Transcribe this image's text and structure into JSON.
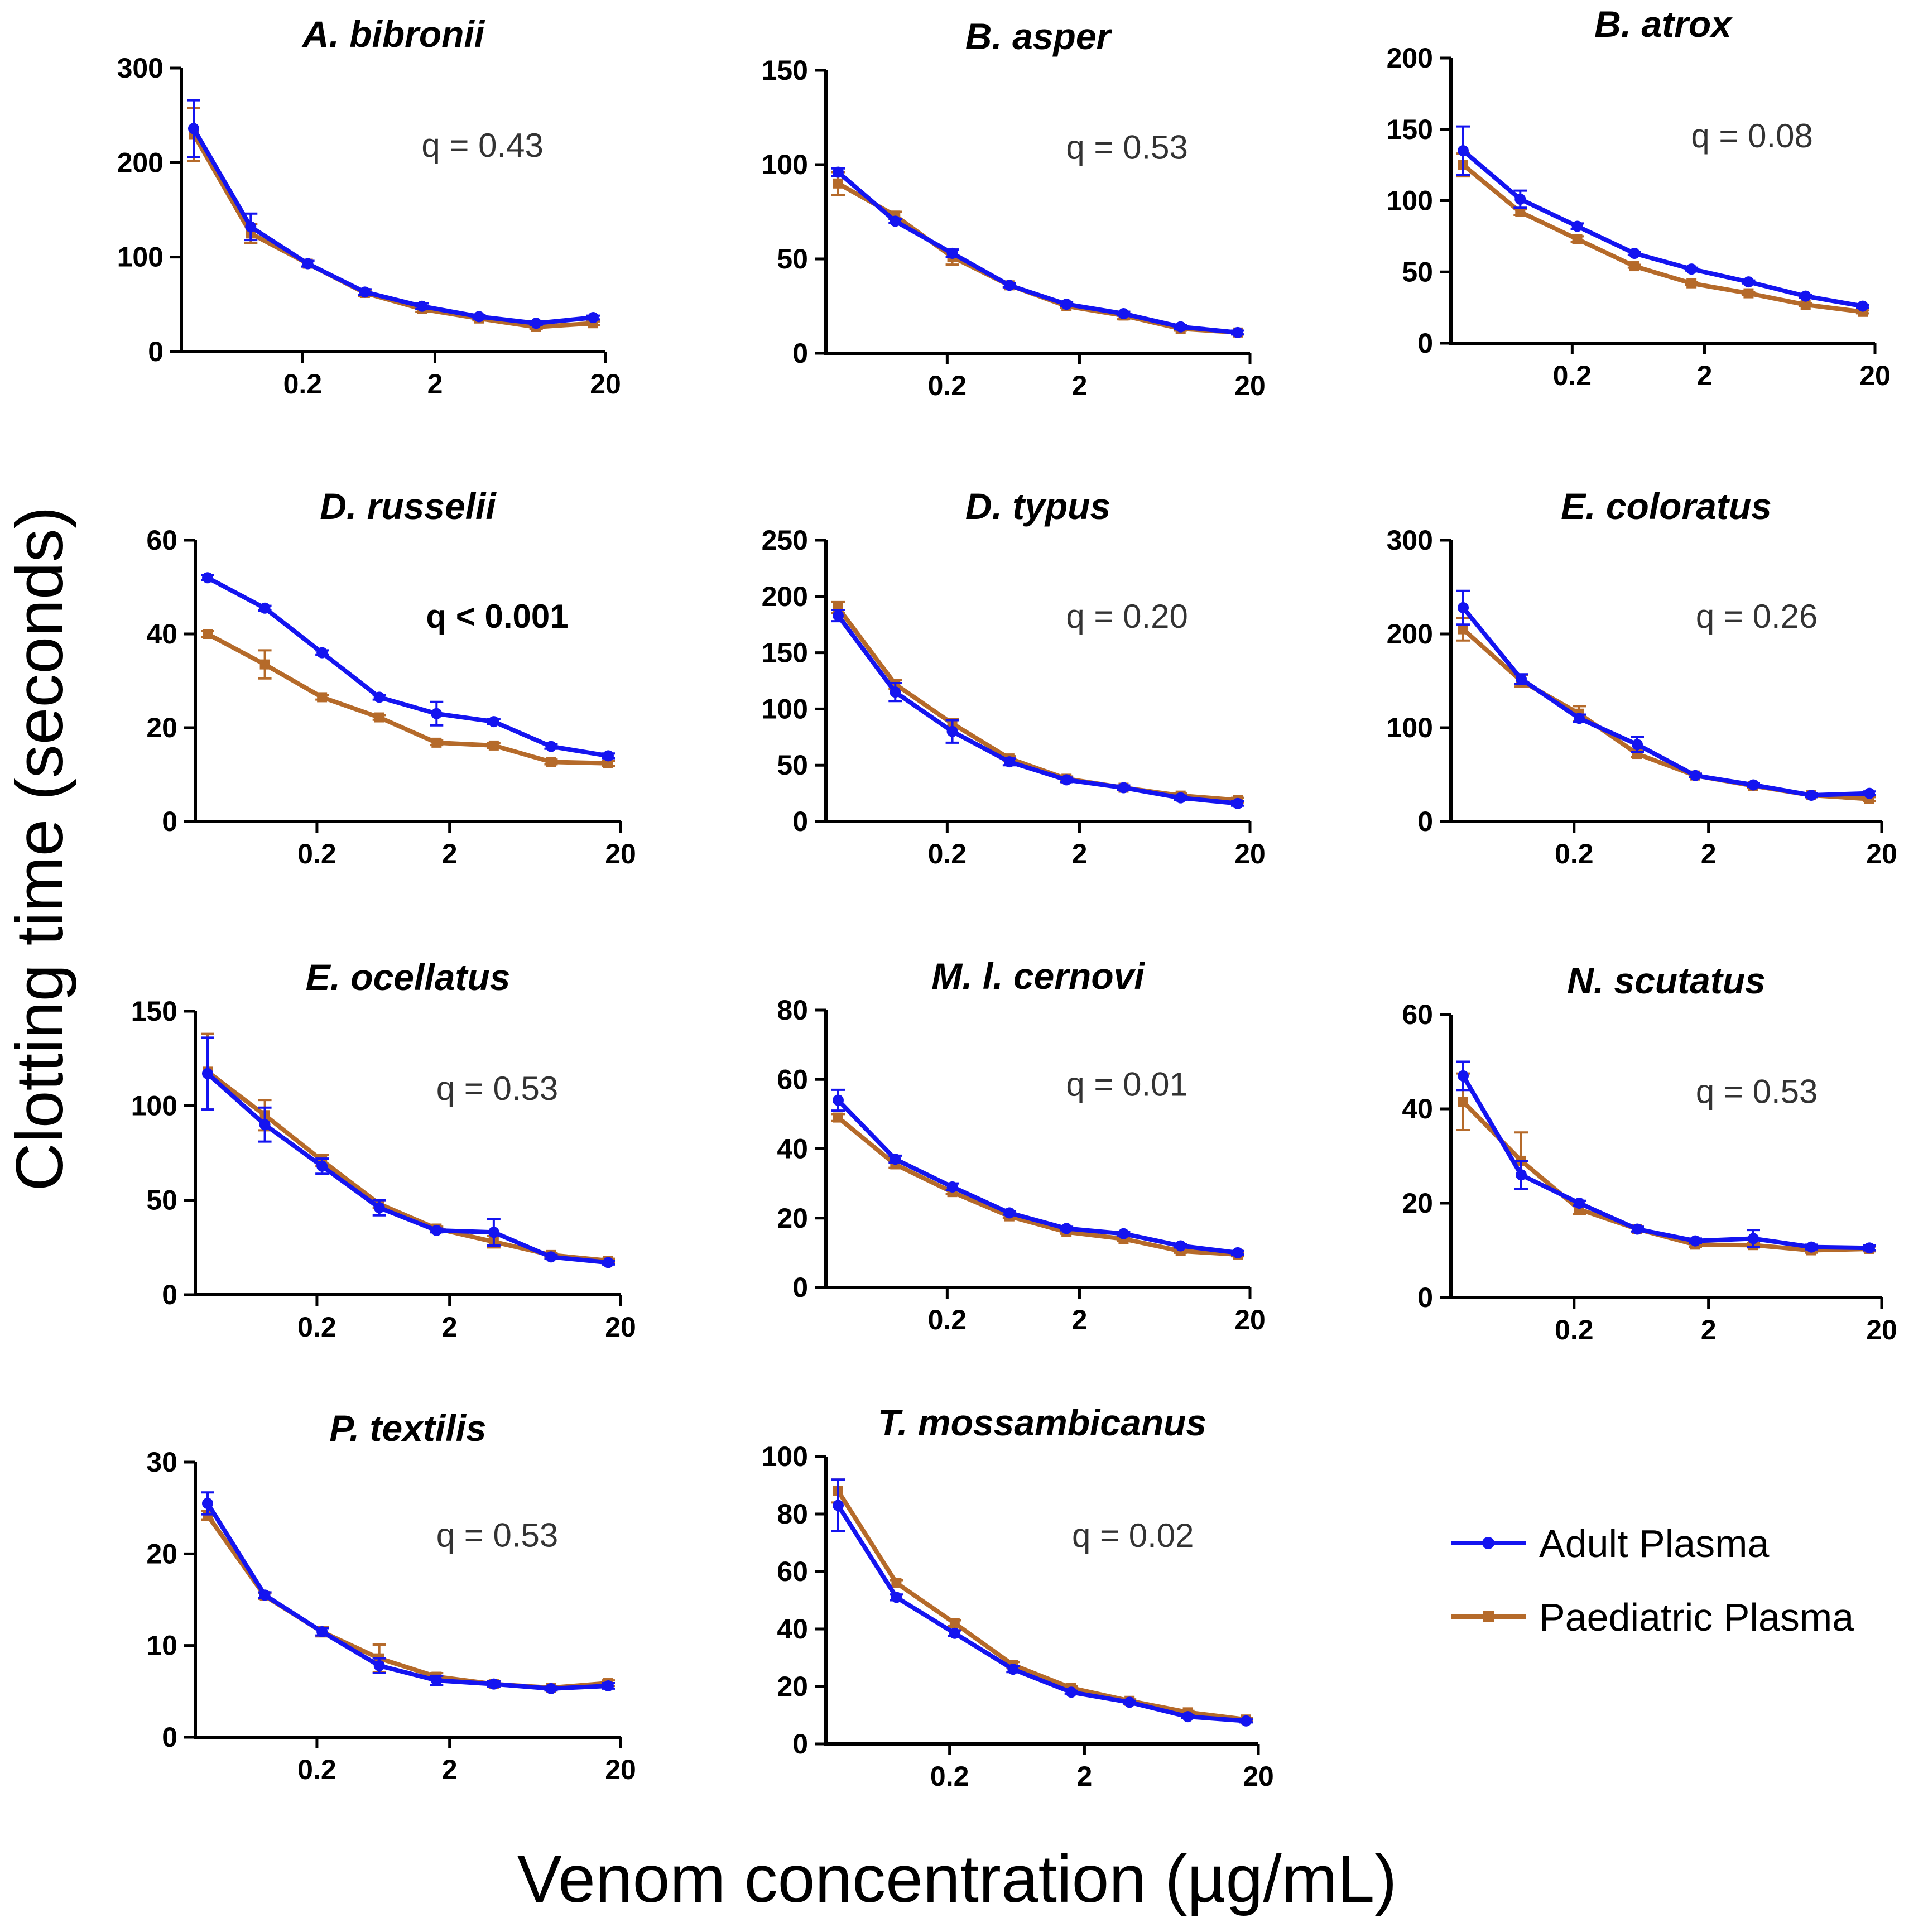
{
  "y_axis_label": "Clotting time (seconds)",
  "x_axis_label": "Venom concentration (µg/mL)",
  "legend": [
    {
      "label": "Adult Plasma",
      "color": "#1414f0",
      "marker": "circle"
    },
    {
      "label": "Paediatric Plasma",
      "color": "#b56a2a",
      "marker": "square"
    }
  ],
  "chart_data": [
    {
      "type": "line",
      "title": "A. bibronii",
      "q": "q = 0.43",
      "q_bold": false,
      "ylim": [
        0,
        300
      ],
      "yticks": [
        0,
        100,
        200,
        300
      ],
      "xticks": [
        "0.2",
        "2",
        "20"
      ],
      "series": [
        {
          "name": "Adult Plasma",
          "values": [
            236,
            132,
            93,
            63,
            48,
            37,
            30,
            36
          ],
          "err": [
            30,
            14,
            3,
            3,
            3,
            2,
            2,
            2
          ]
        },
        {
          "name": "Paediatric Plasma",
          "values": [
            230,
            125,
            93,
            62,
            45,
            35,
            26,
            30
          ],
          "err": [
            28,
            10,
            3,
            3,
            3,
            2,
            2,
            2
          ]
        }
      ]
    },
    {
      "type": "line",
      "title": "B. asper",
      "q": "q = 0.53",
      "q_bold": false,
      "ylim": [
        0,
        150
      ],
      "yticks": [
        0,
        50,
        100,
        150
      ],
      "xticks": [
        "0.2",
        "2",
        "20"
      ],
      "series": [
        {
          "name": "Adult Plasma",
          "values": [
            96,
            70,
            53,
            36,
            26,
            21,
            14,
            11
          ],
          "err": [
            2,
            1,
            2,
            1,
            1,
            1,
            1,
            1
          ]
        },
        {
          "name": "Paediatric Plasma",
          "values": [
            90,
            73,
            51,
            36,
            25,
            20,
            13,
            11
          ],
          "err": [
            6,
            2,
            4,
            1,
            1,
            2,
            1,
            1
          ]
        }
      ]
    },
    {
      "type": "line",
      "title": "B. atrox",
      "q": "q = 0.08",
      "q_bold": false,
      "ylim": [
        0,
        200
      ],
      "yticks": [
        0,
        50,
        100,
        150,
        200
      ],
      "xticks": [
        "0.2",
        "2",
        "20"
      ],
      "series": [
        {
          "name": "Adult Plasma",
          "values": [
            135,
            101,
            82,
            63,
            52,
            43,
            33,
            26
          ],
          "err": [
            17,
            6,
            2,
            1,
            1,
            1,
            1,
            1
          ]
        },
        {
          "name": "Paediatric Plasma",
          "values": [
            125,
            92,
            73,
            54,
            42,
            35,
            27,
            22
          ],
          "err": [
            8,
            2,
            2,
            1,
            1,
            1,
            1,
            1
          ]
        }
      ]
    },
    {
      "type": "line",
      "title": "D. russelii",
      "q": "q < 0.001",
      "q_bold": true,
      "ylim": [
        0,
        60
      ],
      "yticks": [
        0,
        20,
        40,
        60
      ],
      "xticks": [
        "0.2",
        "2",
        "20"
      ],
      "series": [
        {
          "name": "Adult Plasma",
          "values": [
            52,
            45.5,
            36,
            26.5,
            23,
            21.3,
            16,
            14
          ],
          "err": [
            0.5,
            0.5,
            0.5,
            0.5,
            2.5,
            0.5,
            0.5,
            0.5
          ]
        },
        {
          "name": "Paediatric Plasma",
          "values": [
            40,
            33.5,
            26.5,
            22.2,
            16.8,
            16.2,
            12.7,
            12.4
          ],
          "err": [
            0.6,
            3,
            0.5,
            0.5,
            0.5,
            0.5,
            0.5,
            0.5
          ]
        }
      ]
    },
    {
      "type": "line",
      "title": "D. typus",
      "q": "q = 0.20",
      "q_bold": false,
      "ylim": [
        0,
        250
      ],
      "yticks": [
        0,
        50,
        100,
        150,
        200,
        250
      ],
      "xticks": [
        "0.2",
        "2",
        "20"
      ],
      "series": [
        {
          "name": "Adult Plasma",
          "values": [
            183,
            115,
            80,
            53,
            37,
            30,
            21,
            16
          ],
          "err": [
            5,
            8,
            10,
            3,
            2,
            2,
            2,
            2
          ]
        },
        {
          "name": "Paediatric Plasma",
          "values": [
            190,
            122,
            87,
            56,
            38,
            30,
            23,
            19
          ],
          "err": [
            5,
            4,
            4,
            2,
            2,
            2,
            2,
            2
          ]
        }
      ]
    },
    {
      "type": "line",
      "title": "E. coloratus",
      "q": "q = 0.26",
      "q_bold": false,
      "ylim": [
        0,
        300
      ],
      "yticks": [
        0,
        100,
        200,
        300
      ],
      "xticks": [
        "0.2",
        "2",
        "20"
      ],
      "series": [
        {
          "name": "Adult Plasma",
          "values": [
            228,
            152,
            110,
            82,
            49,
            39,
            28,
            30
          ],
          "err": [
            18,
            5,
            4,
            8,
            2,
            2,
            2,
            2
          ]
        },
        {
          "name": "Paediatric Plasma",
          "values": [
            205,
            150,
            115,
            72,
            49,
            38,
            28,
            24
          ],
          "err": [
            12,
            6,
            8,
            3,
            2,
            2,
            2,
            2
          ]
        }
      ]
    },
    {
      "type": "line",
      "title": "E. ocellatus",
      "q": "q = 0.53",
      "q_bold": false,
      "ylim": [
        0,
        150
      ],
      "yticks": [
        0,
        50,
        100,
        150
      ],
      "xticks": [
        "0.2",
        "2",
        "20"
      ],
      "series": [
        {
          "name": "Adult Plasma",
          "values": [
            117,
            90,
            68,
            46,
            34,
            33,
            20,
            17
          ],
          "err": [
            19,
            9,
            4,
            4,
            1,
            7,
            1,
            1
          ]
        },
        {
          "name": "Paediatric Plasma",
          "values": [
            118,
            95,
            71,
            48,
            35,
            28,
            21,
            18
          ],
          "err": [
            20,
            8,
            3,
            2,
            1,
            3,
            1,
            1
          ]
        }
      ]
    },
    {
      "type": "line",
      "title": "M. l. cernovi",
      "q": "q = 0.01",
      "q_bold": false,
      "ylim": [
        0,
        80
      ],
      "yticks": [
        0,
        20,
        40,
        60,
        80
      ],
      "xticks": [
        "0.2",
        "2",
        "20"
      ],
      "series": [
        {
          "name": "Adult Plasma",
          "values": [
            54,
            37,
            29,
            21.5,
            17,
            15.5,
            12,
            10
          ],
          "err": [
            3,
            1,
            1,
            0.5,
            0.5,
            0.5,
            0.5,
            0.5
          ]
        },
        {
          "name": "Paediatric Plasma",
          "values": [
            49,
            35.5,
            27.5,
            20.5,
            16,
            14,
            10.5,
            9.5
          ],
          "err": [
            1,
            1,
            0.5,
            0.5,
            0.5,
            0.5,
            0.5,
            0.5
          ]
        }
      ]
    },
    {
      "type": "line",
      "title": "N. scutatus",
      "q": "q = 0.53",
      "q_bold": false,
      "ylim": [
        0,
        60
      ],
      "yticks": [
        0,
        20,
        40,
        60
      ],
      "xticks": [
        "0.2",
        "2",
        "20"
      ],
      "series": [
        {
          "name": "Adult Plasma",
          "values": [
            47,
            26,
            20,
            14.5,
            12,
            12.5,
            10.7,
            10.5
          ],
          "err": [
            3,
            3,
            0.5,
            0.5,
            0.5,
            1.8,
            0.5,
            0.5
          ]
        },
        {
          "name": "Paediatric Plasma",
          "values": [
            41.5,
            29,
            18.7,
            14.5,
            11.2,
            11.1,
            10,
            10.3
          ],
          "err": [
            6,
            6,
            1,
            0.5,
            0.5,
            0.5,
            0.5,
            0.5
          ]
        }
      ]
    },
    {
      "type": "line",
      "title": "P. textilis",
      "q": "q = 0.53",
      "q_bold": false,
      "ylim": [
        0,
        30
      ],
      "yticks": [
        0,
        10,
        20,
        30
      ],
      "xticks": [
        "0.2",
        "2",
        "20"
      ],
      "series": [
        {
          "name": "Adult Plasma",
          "values": [
            25.5,
            15.5,
            11.5,
            7.8,
            6.2,
            5.8,
            5.3,
            5.6
          ],
          "err": [
            1.2,
            0.3,
            0.4,
            0.8,
            0.5,
            0.3,
            0.2,
            0.3
          ]
        },
        {
          "name": "Paediatric Plasma",
          "values": [
            24.2,
            15.4,
            11.5,
            8.6,
            6.6,
            5.8,
            5.4,
            5.9
          ],
          "err": [
            0.5,
            0.3,
            0.5,
            1.5,
            0.4,
            0.3,
            0.2,
            0.3
          ]
        }
      ]
    },
    {
      "type": "line",
      "title": "T. mossambicanus",
      "q": "q = 0.02",
      "q_bold": false,
      "ylim": [
        0,
        100
      ],
      "yticks": [
        0,
        20,
        40,
        60,
        80,
        100
      ],
      "xticks": [
        "0.2",
        "2",
        "20"
      ],
      "series": [
        {
          "name": "Adult Plasma",
          "values": [
            83,
            51,
            38.5,
            26,
            18,
            14.5,
            9.5,
            8
          ],
          "err": [
            9,
            1,
            1,
            1,
            0.5,
            0.5,
            0.5,
            0.5
          ]
        },
        {
          "name": "Paediatric Plasma",
          "values": [
            88,
            56,
            42,
            27.5,
            19.5,
            15,
            11,
            8.5
          ],
          "err": [
            4,
            1,
            1,
            1,
            0.5,
            0.5,
            0.5,
            0.5
          ]
        }
      ]
    }
  ]
}
